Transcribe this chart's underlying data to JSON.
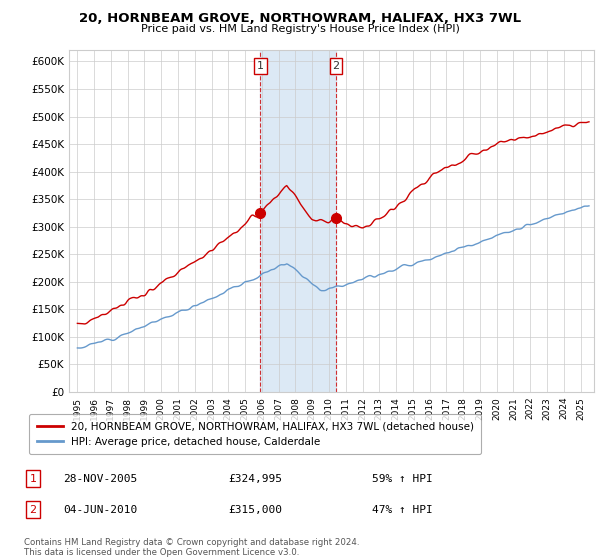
{
  "title": "20, HORNBEAM GROVE, NORTHOWRAM, HALIFAX, HX3 7WL",
  "subtitle": "Price paid vs. HM Land Registry's House Price Index (HPI)",
  "hpi_label": "HPI: Average price, detached house, Calderdale",
  "property_label": "20, HORNBEAM GROVE, NORTHOWRAM, HALIFAX, HX3 7WL (detached house)",
  "sale1_date": "28-NOV-2005",
  "sale1_price": "£324,995",
  "sale1_hpi": "59% ↑ HPI",
  "sale2_date": "04-JUN-2010",
  "sale2_price": "£315,000",
  "sale2_hpi": "47% ↑ HPI",
  "property_color": "#cc0000",
  "hpi_color": "#6699cc",
  "shade_color": "#dce9f5",
  "background_color": "#ffffff",
  "grid_color": "#cccccc",
  "ylabel_ticks": [
    "£0",
    "£50K",
    "£100K",
    "£150K",
    "£200K",
    "£250K",
    "£300K",
    "£350K",
    "£400K",
    "£450K",
    "£500K",
    "£550K",
    "£600K"
  ],
  "ytick_values": [
    0,
    50000,
    100000,
    150000,
    200000,
    250000,
    300000,
    350000,
    400000,
    450000,
    500000,
    550000,
    600000
  ],
  "ylim": [
    0,
    620000
  ],
  "xlim_start": 1994.5,
  "xlim_end": 2025.8,
  "sale1_x": 2005.91,
  "sale2_x": 2010.42,
  "sale1_y": 324995,
  "sale2_y": 315000,
  "footnote": "Contains HM Land Registry data © Crown copyright and database right 2024.\nThis data is licensed under the Open Government Licence v3.0."
}
